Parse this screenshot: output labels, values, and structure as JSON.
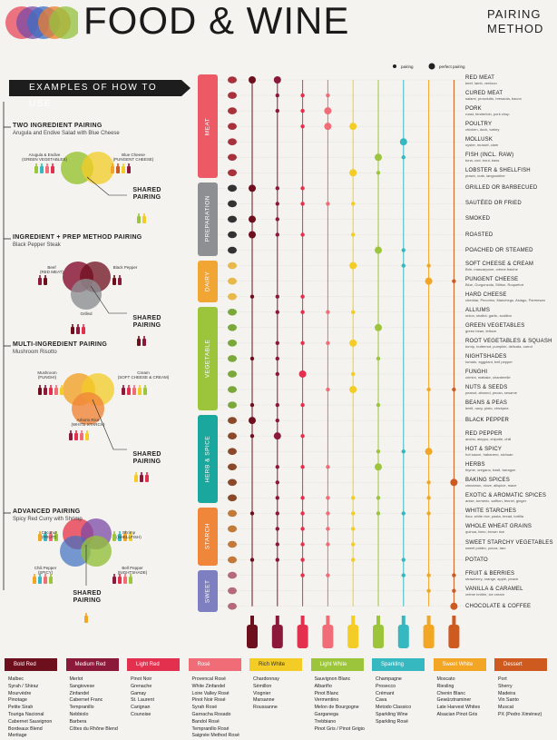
{
  "title": {
    "main": "FOOD & WINE",
    "sub1": "PAIRING",
    "sub2": "METHOD"
  },
  "logo_colors": [
    "#e8485a",
    "#7b4aa5",
    "#3d6fc3",
    "#ef7d2e",
    "#94c13c"
  ],
  "legend": {
    "pairing": "pairing",
    "perfect": "perfect pairing"
  },
  "examples": {
    "banner": "EXAMPLES OF HOW TO USE",
    "ex1": {
      "title": "TWO INGREDIENT PAIRING",
      "sub": "Arugula and Endive Salad with Blue Cheese",
      "a": "Arugula & Endive",
      "a_sub": "(GREEN VEGETABLES)",
      "b": "Blue Cheese",
      "b_sub": "(PUNGENT CHEESE)"
    },
    "ex2": {
      "title": "INGREDIENT + PREP METHOD PAIRING",
      "sub": "Black Pepper Steak",
      "a": "Beef",
      "a_sub": "(RED MEAT)",
      "b": "Black Pepper",
      "c": "Grilled"
    },
    "ex3": {
      "title": "MULTI-INGREDIENT PAIRING",
      "sub": "Mushroom Risotto",
      "a": "Mushroom",
      "a_sub": "(FUNGHI)",
      "b": "Cream",
      "b_sub": "(SOFT CHEESE & CREAM)",
      "c": "Arborio Rice",
      "c_sub": "(WHITE STARCH)"
    },
    "ex4": {
      "title": "ADVANCED PAIRING",
      "sub": "Spicy Red Curry with Shrimp",
      "a": "Coconut",
      "a_sub": "(FRUIT)",
      "b": "Shrimp",
      "b_sub": "(SHELLFISH)",
      "c": "Chili Pepper",
      "c_sub": "(SPICY)",
      "d": "Bell Pepper",
      "d_sub": "(NIGHTSHADE)"
    },
    "shared1": "SHARED",
    "shared2": "PAIRING"
  },
  "categories": [
    {
      "name": "MEAT",
      "color": "#ee5966"
    },
    {
      "name": "PREPARATION",
      "color": "#8d8f92"
    },
    {
      "name": "DAIRY",
      "color": "#f1a634"
    },
    {
      "name": "VEGETABLE",
      "color": "#9cc53c"
    },
    {
      "name": "HERB & SPICE",
      "color": "#1aa79d"
    },
    {
      "name": "STARCH",
      "color": "#f0863a"
    },
    {
      "name": "SWEET",
      "color": "#7d7fc0"
    }
  ],
  "rows": [
    {
      "label": "RED MEAT",
      "sub": "beef, lamb, venison"
    },
    {
      "label": "CURED MEAT",
      "sub": "salami, prosciutto, bresaola, bacon"
    },
    {
      "label": "PORK",
      "sub": "roast, tenderloin, pork chop"
    },
    {
      "label": "POULTRY",
      "sub": "chicken, duck, turkey"
    },
    {
      "label": "MOLLUSK",
      "sub": "oyster, mussel, clam"
    },
    {
      "label": "FISH (INCL. RAW)",
      "sub": "tuna, cod, trout, bass"
    },
    {
      "label": "LOBSTER & SHELLFISH",
      "sub": "prawn, crab, langoustine"
    },
    {
      "label": "GRILLED OR BARBECUED",
      "sub": ""
    },
    {
      "label": "SAUTÉED OR FRIED",
      "sub": ""
    },
    {
      "label": "SMOKED",
      "sub": ""
    },
    {
      "label": "ROASTED",
      "sub": ""
    },
    {
      "label": "POACHED OR STEAMED",
      "sub": ""
    },
    {
      "label": "SOFT CHEESE & CREAM",
      "sub": "Brie, mascarpone, crème fraiche"
    },
    {
      "label": "PUNGENT CHEESE",
      "sub": "Blue, Gorgonzola, Stilton, Roquefort"
    },
    {
      "label": "HARD CHEESE",
      "sub": "cheddar, Pecorino, Manchego, Asiago, Parmesan"
    },
    {
      "label": "ALLIUMS",
      "sub": "onion, shallot, garlic, scallion"
    },
    {
      "label": "GREEN VEGETABLES",
      "sub": "green bean, lettuce"
    },
    {
      "label": "ROOT VEGETABLES & SQUASH",
      "sub": "turnip, butternut, pumpkin, delicata, carrot"
    },
    {
      "label": "NIGHTSHADES",
      "sub": "tomato, eggplant, bell pepper"
    },
    {
      "label": "FUNGHI",
      "sub": "crimini, maitake, chanterelle"
    },
    {
      "label": "NUTS & SEEDS",
      "sub": "peanut, almond, pecan, sesame"
    },
    {
      "label": "BEANS & PEAS",
      "sub": "lentil, navy, pinto, chickpea"
    },
    {
      "label": "BLACK PEPPER",
      "sub": ""
    },
    {
      "label": "RED PEPPER",
      "sub": "ancho, aleppo, chipotle, chili"
    },
    {
      "label": "HOT & SPICY",
      "sub": "hot sauce, habanero, sichuan"
    },
    {
      "label": "HERBS",
      "sub": "thyme, oregano, basil, tarragon"
    },
    {
      "label": "BAKING SPICES",
      "sub": "cinnamon, clove, allspice, mace"
    },
    {
      "label": "EXOTIC & AROMATIC SPICES",
      "sub": "anise, turmeric, saffron, fennel, ginger"
    },
    {
      "label": "WHITE STARCHES",
      "sub": "flour, white rice, pasta, bread, tortilla"
    },
    {
      "label": "WHOLE WHEAT GRAINS",
      "sub": "quinoa, farro, brown rice"
    },
    {
      "label": "SWEET STARCHY VEGETABLES",
      "sub": "sweet potato, yucca, taro"
    },
    {
      "label": "POTATO",
      "sub": ""
    },
    {
      "label": "FRUIT & BERRIES",
      "sub": "strawberry, orange, apple, peach"
    },
    {
      "label": "VANILLA & CARAMEL",
      "sub": "crème brûlée, ice cream"
    },
    {
      "label": "CHOCOLATE & COFFEE",
      "sub": ""
    }
  ],
  "wines": [
    {
      "name": "Bold Red",
      "color": "#6e0f1e",
      "list": [
        "Malbec",
        "Syrah / Shiraz",
        "Mourvèdre",
        "Pinotage",
        "Petite Sirah",
        "Touriga Nacional",
        "Cabernet Sauvignon",
        "Bordeaux Blend",
        "Meritage"
      ]
    },
    {
      "name": "Medium Red",
      "color": "#8b1a3a",
      "list": [
        "Merlot",
        "Sangiovese",
        "Zinfandel",
        "Cabernet Franc",
        "Tempranillo",
        "Nebbiolo",
        "Barbera",
        "Côtes du Rhône Blend"
      ]
    },
    {
      "name": "Light Red",
      "color": "#e3304f",
      "list": [
        "Pinot Noir",
        "Grenache",
        "Gamay",
        "St. Laurent",
        "Carignan",
        "Counoise"
      ]
    },
    {
      "name": "Rosé",
      "color": "#f06d78",
      "list": [
        "Provencal Rosé",
        "White Zinfandel",
        "Loire Valley Rosé",
        "Pinot Noir Rosé",
        "Syrah Rosé",
        "Garnacha Rosado",
        "Bandol Rosé",
        "Tempranillo Rosé",
        "Saignée Method Rosé"
      ]
    },
    {
      "name": "Rich White",
      "color": "#f3cc25",
      "list": [
        "Chardonnay",
        "Sémillon",
        "Viognier",
        "Marsanne",
        "Roussanne"
      ]
    },
    {
      "name": "Light White",
      "color": "#9cc53c",
      "list": [
        "Sauvignon Blanc",
        "Albariño",
        "Pinot Blanc",
        "Vermentino",
        "Melon de Bourgogne",
        "Garganega",
        "Trebbiano",
        "Pinot Gris / Pinot Grigio"
      ]
    },
    {
      "name": "Sparkling",
      "color": "#36b8c0",
      "list": [
        "Champagne",
        "Prosecco",
        "Crémant",
        "Cava",
        "Metodo Classico",
        "Sparkling Wine",
        "Sparkling Rosé"
      ]
    },
    {
      "name": "Sweet White",
      "color": "#f2a623",
      "list": [
        "Moscato",
        "Riesling",
        "Chenin Blanc",
        "Gewürztraminer",
        "Late Harvest Whites",
        "Alsacian Pinot Gris"
      ]
    },
    {
      "name": "Dessert",
      "color": "#cf5a1f",
      "list": [
        "Port",
        "Sherry",
        "Madeira",
        "Vin Santo",
        "Muscat",
        "PX (Pedro Ximénez)"
      ]
    }
  ],
  "pairings": [
    [
      2,
      2,
      0,
      0,
      0,
      0,
      0,
      0,
      0
    ],
    [
      0,
      1,
      1,
      1,
      0,
      0,
      0,
      0,
      0
    ],
    [
      0,
      1,
      1,
      2,
      0,
      0,
      0,
      0,
      0
    ],
    [
      0,
      0,
      1,
      2,
      2,
      0,
      0,
      0,
      0
    ],
    [
      0,
      0,
      0,
      0,
      0,
      0,
      2,
      0,
      0
    ],
    [
      0,
      0,
      0,
      0,
      0,
      2,
      1,
      0,
      0
    ],
    [
      0,
      0,
      0,
      0,
      2,
      1,
      0,
      0,
      0
    ],
    [
      2,
      1,
      1,
      0,
      0,
      0,
      0,
      0,
      0
    ],
    [
      0,
      1,
      1,
      1,
      1,
      0,
      0,
      0,
      0
    ],
    [
      2,
      1,
      0,
      0,
      0,
      0,
      0,
      0,
      0
    ],
    [
      2,
      1,
      1,
      0,
      1,
      0,
      0,
      0,
      0
    ],
    [
      0,
      0,
      0,
      0,
      0,
      2,
      1,
      0,
      0
    ],
    [
      0,
      0,
      0,
      0,
      2,
      0,
      1,
      1,
      0
    ],
    [
      0,
      0,
      0,
      0,
      0,
      0,
      0,
      2,
      1
    ],
    [
      1,
      1,
      1,
      0,
      0,
      0,
      0,
      0,
      0
    ],
    [
      0,
      1,
      1,
      1,
      1,
      0,
      0,
      0,
      0
    ],
    [
      0,
      0,
      0,
      0,
      0,
      2,
      0,
      0,
      0
    ],
    [
      0,
      1,
      1,
      1,
      2,
      0,
      0,
      0,
      0
    ],
    [
      1,
      1,
      0,
      0,
      0,
      1,
      0,
      0,
      0
    ],
    [
      0,
      1,
      2,
      0,
      1,
      0,
      0,
      0,
      0
    ],
    [
      0,
      0,
      0,
      1,
      2,
      0,
      0,
      1,
      1
    ],
    [
      1,
      1,
      1,
      0,
      0,
      1,
      0,
      0,
      0
    ],
    [
      2,
      1,
      0,
      0,
      0,
      0,
      0,
      0,
      0
    ],
    [
      1,
      2,
      1,
      0,
      0,
      0,
      0,
      0,
      0
    ],
    [
      0,
      0,
      0,
      0,
      0,
      1,
      1,
      2,
      0
    ],
    [
      0,
      1,
      1,
      1,
      0,
      2,
      0,
      0,
      0
    ],
    [
      0,
      1,
      0,
      0,
      0,
      0,
      0,
      1,
      2
    ],
    [
      0,
      1,
      1,
      1,
      1,
      1,
      0,
      1,
      0
    ],
    [
      1,
      1,
      1,
      1,
      1,
      1,
      1,
      1,
      0
    ],
    [
      0,
      1,
      1,
      1,
      1,
      0,
      0,
      0,
      0
    ],
    [
      0,
      1,
      1,
      1,
      1,
      0,
      0,
      0,
      0
    ],
    [
      1,
      1,
      1,
      0,
      1,
      0,
      1,
      0,
      0
    ],
    [
      0,
      0,
      1,
      1,
      0,
      0,
      1,
      1,
      1
    ],
    [
      0,
      0,
      0,
      0,
      0,
      0,
      0,
      1,
      1
    ],
    [
      0,
      0,
      0,
      0,
      0,
      0,
      0,
      0,
      2
    ]
  ],
  "icon_names": [
    "steak-icon",
    "bacon-icon",
    "pig-icon",
    "chicken-icon",
    "oyster-icon",
    "fish-icon",
    "crab-icon",
    "grill-icon",
    "pan-icon",
    "smoke-icon",
    "roast-icon",
    "steam-icon",
    "cheese-icon",
    "blue-cheese-icon",
    "hard-cheese-icon",
    "garlic-icon",
    "lettuce-icon",
    "squash-icon",
    "eggplant-icon",
    "mushroom-icon",
    "almond-icon",
    "beans-icon",
    "pepper-icon",
    "chili-icon",
    "hot-pepper-icon",
    "herb-icon",
    "cinnamon-icon",
    "star-anise-icon",
    "bread-icon",
    "grain-icon",
    "sweet-potato-icon",
    "potato-icon",
    "strawberry-icon",
    "vanilla-icon",
    "chocolate-icon"
  ]
}
